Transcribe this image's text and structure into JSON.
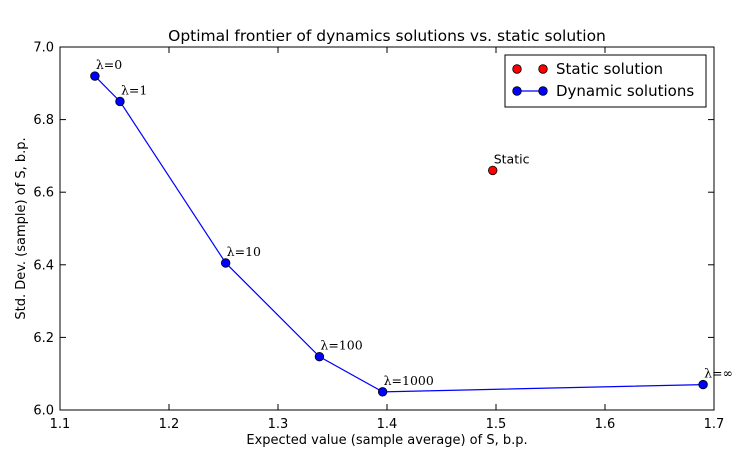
{
  "chart_data": {
    "type": "line",
    "title": "Optimal frontier of dynamics solutions vs. static solution",
    "xlabel": "Expected value (sample average) of S, b.p.",
    "ylabel": "Std. Dev. (sample) of S, b.p.",
    "xlim": [
      1.1,
      1.7
    ],
    "ylim": [
      6.0,
      7.0
    ],
    "xticks": [
      "1.1",
      "1.2",
      "1.3",
      "1.4",
      "1.5",
      "1.6",
      "1.7"
    ],
    "yticks": [
      "6.0",
      "6.2",
      "6.4",
      "6.6",
      "6.8",
      "7.0"
    ],
    "grid": false,
    "legend_position": "top-right",
    "series": [
      {
        "name": "Static solution",
        "color": "#ff0000",
        "line": false,
        "points": [
          {
            "x": 1.497,
            "y": 6.66,
            "label": "Static"
          }
        ]
      },
      {
        "name": "Dynamic solutions",
        "color": "#0000ff",
        "line": true,
        "points": [
          {
            "x": 1.132,
            "y": 6.92,
            "label": "λ=0"
          },
          {
            "x": 1.155,
            "y": 6.85,
            "label": "λ=1"
          },
          {
            "x": 1.252,
            "y": 6.405,
            "label": "λ=10"
          },
          {
            "x": 1.338,
            "y": 6.147,
            "label": "λ=100"
          },
          {
            "x": 1.396,
            "y": 6.05,
            "label": "λ=1000"
          },
          {
            "x": 1.69,
            "y": 6.07,
            "label": "λ=∞"
          }
        ]
      }
    ]
  }
}
